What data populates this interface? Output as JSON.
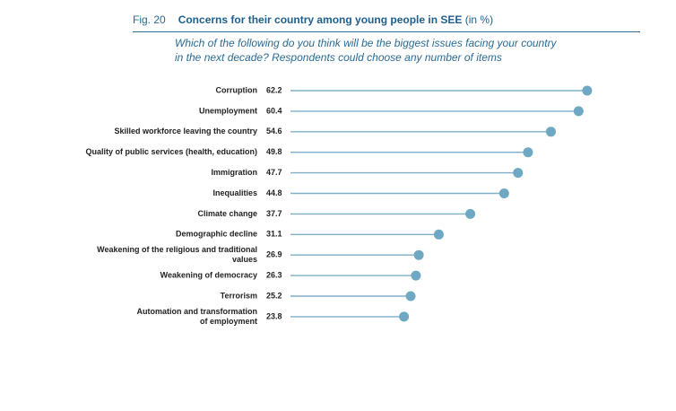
{
  "figure": {
    "number": "Fig. 20",
    "title": "Concerns for their country among young people in SEE",
    "unit": "(in %)",
    "subtitle_line1": "Which of the following do you think will be the biggest issues facing your country",
    "subtitle_line2": "in the next decade? Respondents could choose any number of items"
  },
  "colors": {
    "accent": "#2a6b96",
    "line": "#7fafc6",
    "dot": "#6fa8c2"
  },
  "chart_data": {
    "type": "lollipop",
    "title": "Concerns for their country among young people in SEE (in %)",
    "xlim": [
      0,
      100
    ],
    "categories": [
      [
        "Corruption"
      ],
      [
        "Unemployment"
      ],
      [
        "Skilled workforce leaving the country"
      ],
      [
        "Quality of public services (health, education)"
      ],
      [
        "Immigration"
      ],
      [
        "Inequalities"
      ],
      [
        "Climate change"
      ],
      [
        "Demographic decline"
      ],
      [
        "Weakening of the religious and traditional",
        "values"
      ],
      [
        "Weakening of democracy"
      ],
      [
        "Terrorism"
      ],
      [
        "Automation and transformation",
        "of employment"
      ]
    ],
    "values": [
      62.2,
      60.4,
      54.6,
      49.8,
      47.7,
      44.8,
      37.7,
      31.1,
      26.9,
      26.3,
      25.2,
      23.8
    ]
  }
}
